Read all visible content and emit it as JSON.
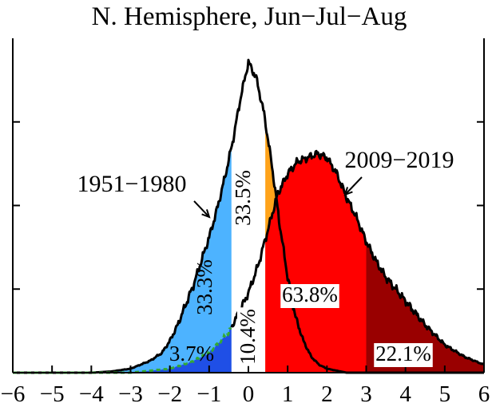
{
  "chart_data": {
    "type": "area",
    "title": "N. Hemisphere, Jun−Jul−Aug",
    "xlabel": "",
    "ylabel": "",
    "xlim": [
      -6,
      6
    ],
    "xticks": [
      -6,
      -5,
      -4,
      -3,
      -2,
      -1,
      0,
      1,
      2,
      3,
      4,
      5,
      6
    ],
    "xtick_labels": [
      "−6",
      "−5",
      "−4",
      "−3",
      "−2",
      "−1",
      "0",
      "1",
      "2",
      "3",
      "4",
      "5",
      "6"
    ],
    "grid": false,
    "series": [
      {
        "name": "1951−1980",
        "color": "#000000",
        "x": [
          -6.0,
          -4.0,
          -3.5,
          -3.0,
          -2.5,
          -2.2,
          -2.0,
          -1.8,
          -1.6,
          -1.4,
          -1.2,
          -1.0,
          -0.8,
          -0.6,
          -0.4,
          -0.2,
          0.0,
          0.2,
          0.4,
          0.6,
          0.8,
          1.0,
          1.2,
          1.4,
          1.6,
          1.8,
          2.0,
          2.5,
          3.0
        ],
        "y": [
          0.0,
          0.0,
          0.003,
          0.01,
          0.03,
          0.05,
          0.08,
          0.12,
          0.17,
          0.22,
          0.28,
          0.34,
          0.41,
          0.49,
          0.58,
          0.69,
          0.78,
          0.74,
          0.65,
          0.52,
          0.37,
          0.24,
          0.14,
          0.08,
          0.04,
          0.02,
          0.01,
          0.0,
          0.0
        ]
      },
      {
        "name": "2009−2019",
        "color": "#000000",
        "x": [
          -3.0,
          -2.0,
          -1.5,
          -1.0,
          -0.5,
          0.0,
          0.25,
          0.5,
          0.75,
          1.0,
          1.25,
          1.5,
          1.75,
          2.0,
          2.25,
          2.5,
          2.75,
          3.0,
          3.25,
          3.5,
          4.0,
          4.5,
          5.0,
          5.5,
          6.0
        ],
        "y": [
          0.0,
          0.01,
          0.025,
          0.05,
          0.1,
          0.2,
          0.27,
          0.36,
          0.45,
          0.5,
          0.53,
          0.54,
          0.55,
          0.54,
          0.5,
          0.44,
          0.39,
          0.33,
          0.28,
          0.24,
          0.18,
          0.12,
          0.07,
          0.04,
          0.02
        ]
      }
    ],
    "thresholds": [
      -0.43,
      0.43,
      3.0
    ],
    "colors": {
      "cold_1951": "#4db3ff",
      "extreme_cold_2009": "#1f4fe6",
      "normal_1951": "#ffffff",
      "hot_1951": "#ffa31a",
      "hot_2009": "#ff0000",
      "extreme_hot_2009": "#990000",
      "reference_dashed": "#33aa33"
    },
    "annotations": [
      {
        "text": "1951−1980",
        "x": -0.75,
        "y": 0.48
      },
      {
        "text": "2009−2019",
        "x": 2.35,
        "y": 0.53
      }
    ],
    "region_labels": [
      {
        "text": "33.3%",
        "series": "1951−1980",
        "x": -0.7,
        "rotated": true
      },
      {
        "text": "33.5%",
        "series": "1951−1980",
        "x": 0.0,
        "rotated": true
      },
      {
        "text": "3.7%",
        "series": "2009−2019",
        "x": -1.2,
        "rotated": false
      },
      {
        "text": "10.4%",
        "series": "2009−2019",
        "x": 0.1,
        "rotated": true
      },
      {
        "text": "63.8%",
        "series": "2009−2019",
        "x": 1.8,
        "rotated": false
      },
      {
        "text": "22.1%",
        "series": "2009−2019",
        "x": 4.3,
        "rotated": false
      }
    ]
  }
}
